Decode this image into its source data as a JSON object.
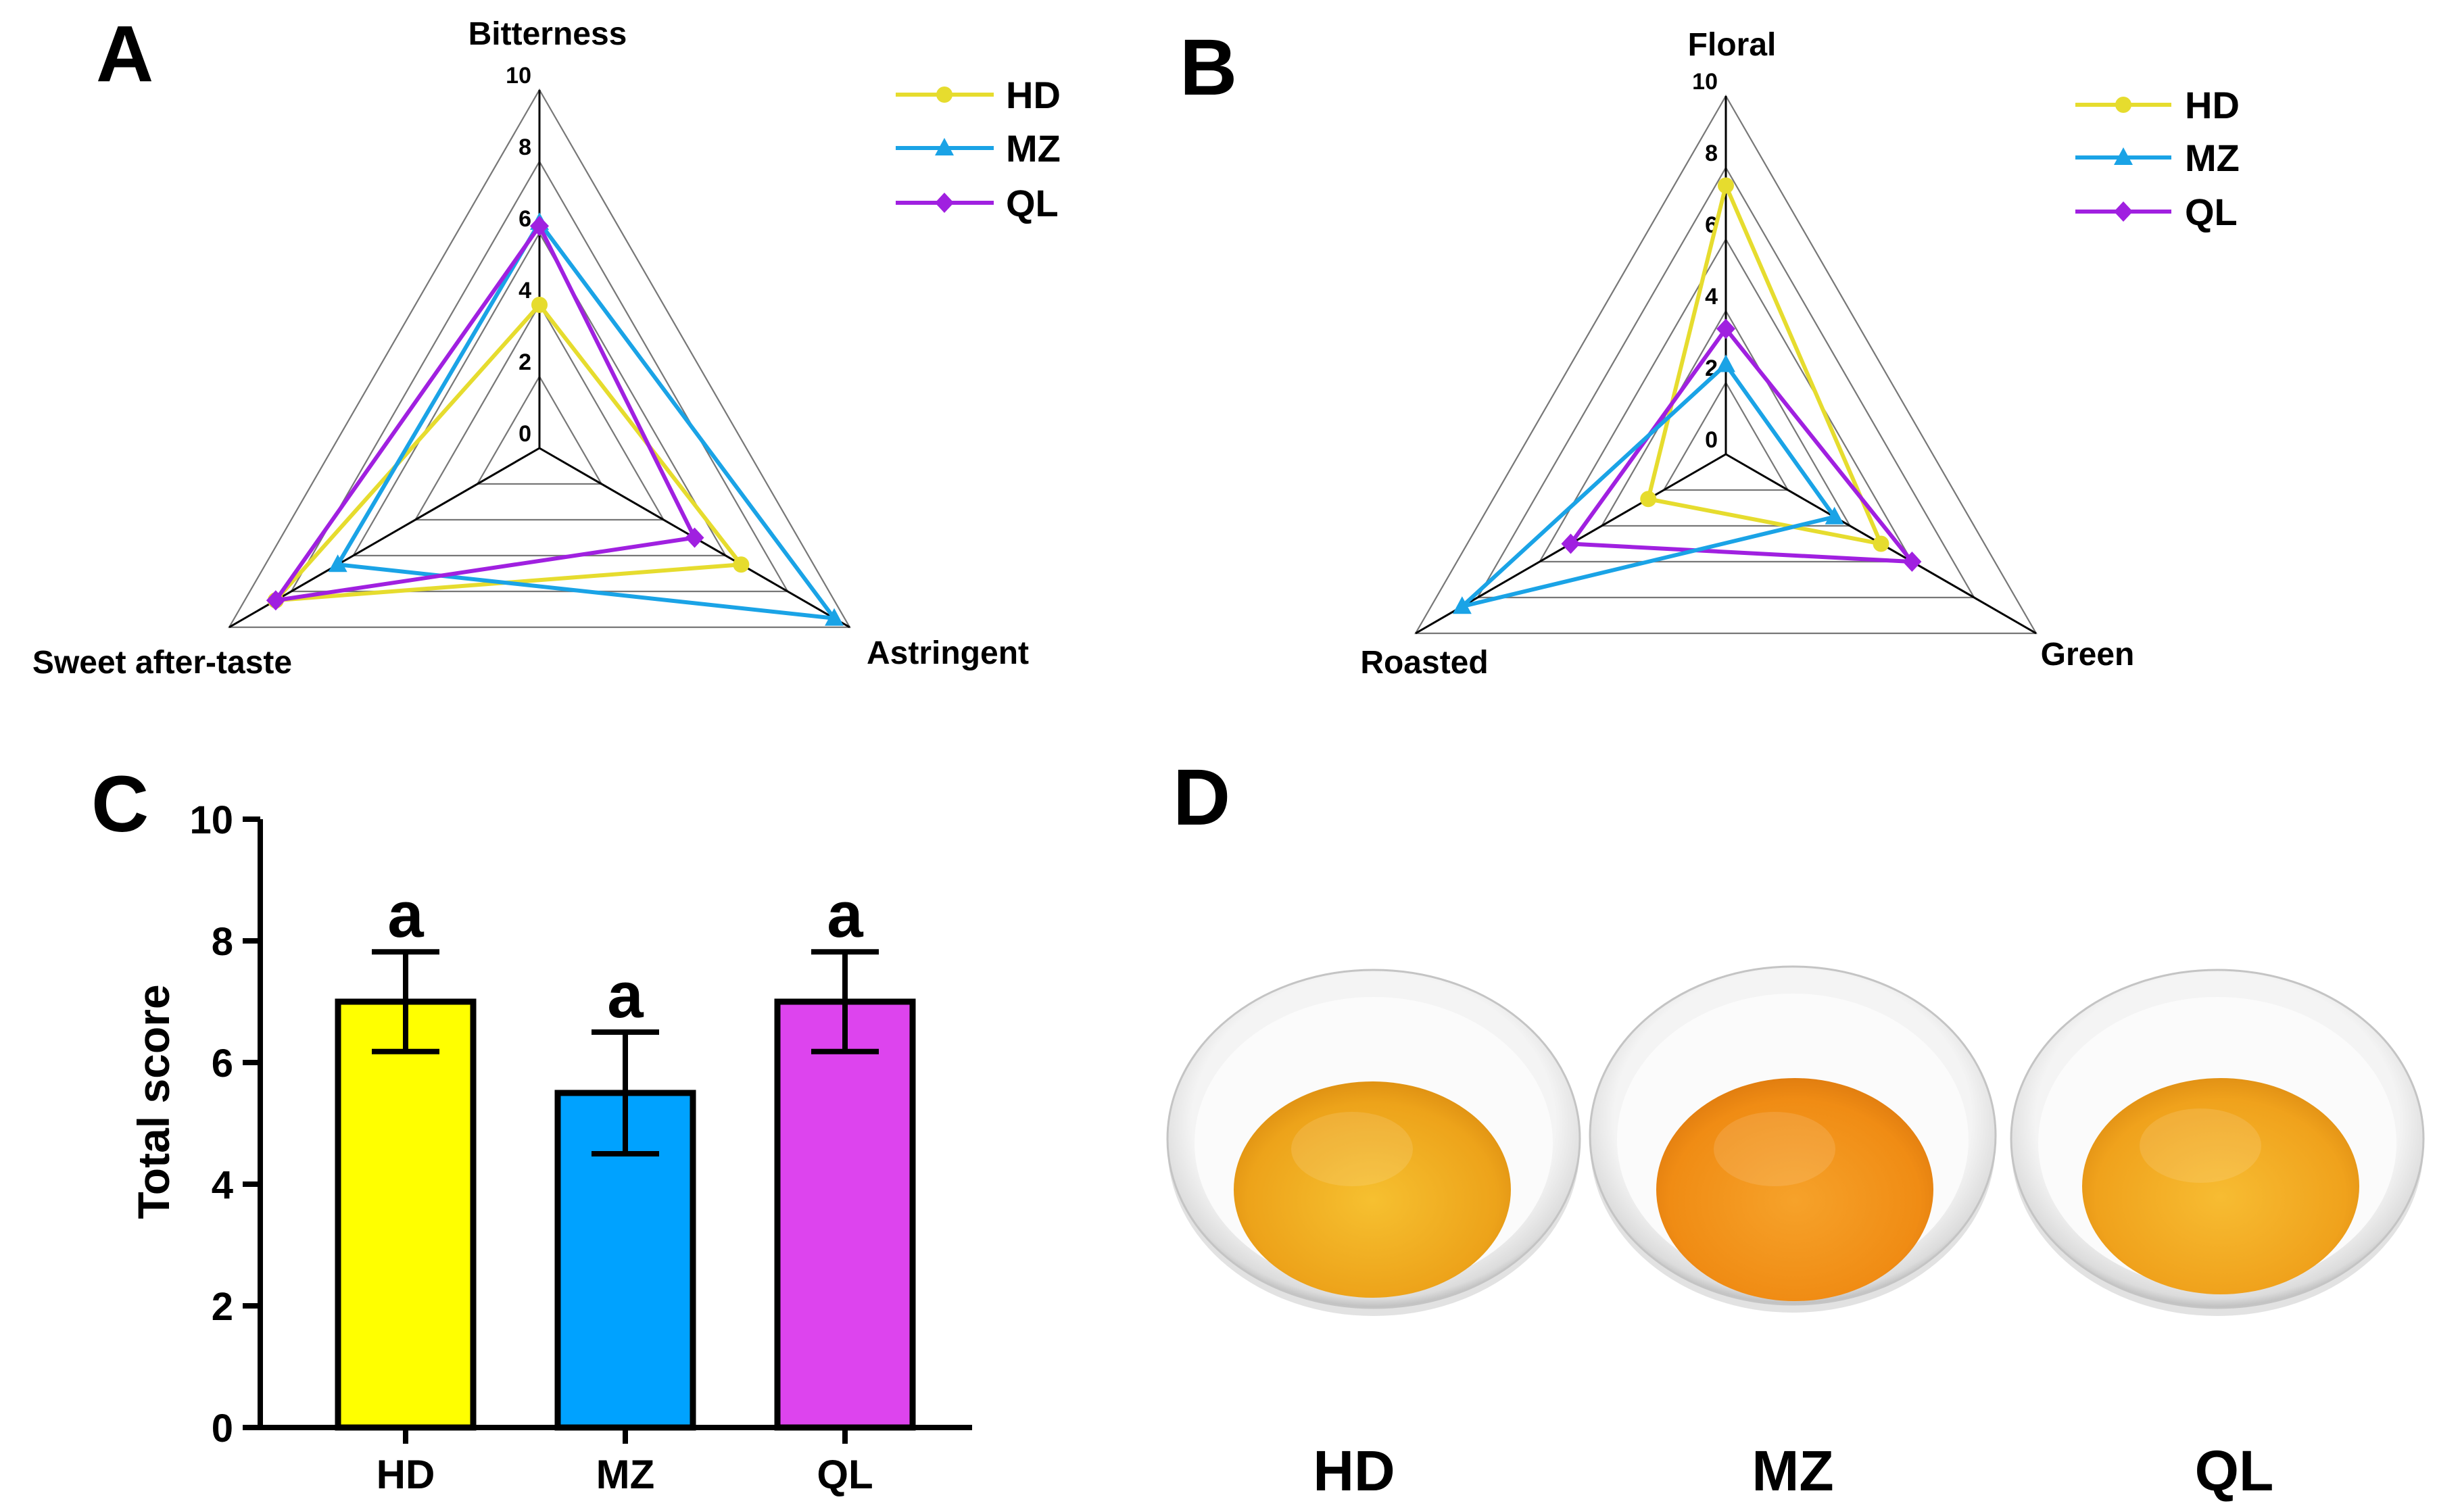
{
  "colors": {
    "HD": "#E6DC2E",
    "MZ": "#1AA3E6",
    "QL": "#A020E0",
    "bar_HD": "#FFFF00",
    "bar_MZ": "#00A2FF",
    "bar_QL": "#DD44EE",
    "grid": "#777777"
  },
  "chart_data": [
    {
      "panel": "A",
      "type": "radar",
      "axes": [
        "Bitterness",
        "Astringent",
        "Sweet after-taste"
      ],
      "ticks": [
        "0",
        "2",
        "4",
        "6",
        "8",
        "10"
      ],
      "rlim": [
        0,
        10
      ],
      "legend": "top-right",
      "series": [
        {
          "name": "HD",
          "marker": "circle",
          "values": [
            4.0,
            6.5,
            8.5
          ]
        },
        {
          "name": "MZ",
          "marker": "triangle",
          "values": [
            6.3,
            9.5,
            6.5
          ]
        },
        {
          "name": "QL",
          "marker": "diamond",
          "values": [
            6.2,
            5.0,
            8.5
          ]
        }
      ]
    },
    {
      "panel": "B",
      "type": "radar",
      "axes": [
        "Floral",
        "Green",
        "Roasted"
      ],
      "ticks": [
        "0",
        "2",
        "4",
        "6",
        "8",
        "10"
      ],
      "rlim": [
        0,
        10
      ],
      "legend": "top-right",
      "series": [
        {
          "name": "HD",
          "marker": "circle",
          "values": [
            7.5,
            5.0,
            2.5
          ]
        },
        {
          "name": "QL",
          "marker": "diamond",
          "values": [
            3.5,
            6.0,
            5.0
          ]
        },
        {
          "name": "MZ",
          "marker": "triangle",
          "values": [
            2.5,
            3.5,
            8.5
          ]
        }
      ],
      "legend_order": [
        "HD",
        "MZ",
        "QL"
      ]
    },
    {
      "panel": "C",
      "type": "bar",
      "categories": [
        "HD",
        "MZ",
        "QL"
      ],
      "values": [
        7.0,
        5.5,
        7.0
      ],
      "errors": [
        0.82,
        1.0,
        0.82
      ],
      "significance": [
        "a",
        "a",
        "a"
      ],
      "ylabel": "Total score",
      "xlabel": "",
      "ylim": [
        0,
        10
      ],
      "yticks": [
        "0",
        "2",
        "4",
        "6",
        "8",
        "10"
      ]
    }
  ],
  "photos": {
    "panel": "D",
    "labels": [
      "HD",
      "MZ",
      "QL"
    ],
    "tea_colors": [
      "#EDA31A",
      "#F08C14",
      "#F0A21C"
    ]
  }
}
